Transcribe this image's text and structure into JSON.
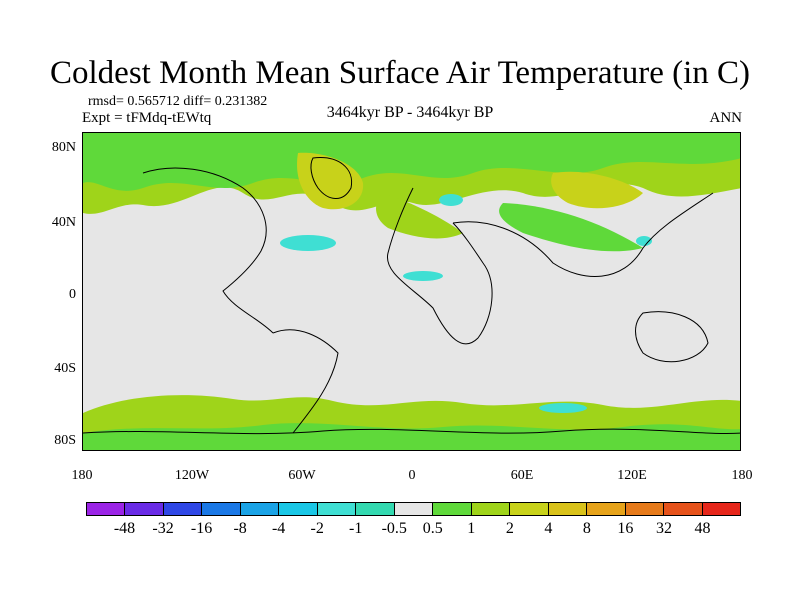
{
  "title": "Coldest Month Mean Surface Air Temperature (in C)",
  "stats": "rmsd= 0.565712 diff= 0.231382",
  "experiment": "Expt = tFMdq-tEWtq",
  "period": "3464kyr BP - 3464kyr BP",
  "season": "ANN",
  "map": {
    "y_tick_labels": [
      "80N",
      "40N",
      "0",
      "40S",
      "80S"
    ],
    "x_tick_labels": [
      "180",
      "120W",
      "60W",
      "0",
      "60E",
      "120E",
      "180"
    ],
    "background_color": "#e6e6e6"
  },
  "colorbar": {
    "colors": [
      "#9b24e6",
      "#6a2be6",
      "#2f47e6",
      "#1a78e6",
      "#1aa3e6",
      "#1ac7e6",
      "#3fdfd3",
      "#33d9b0",
      "#e6e6e6",
      "#5fd93a",
      "#9fd41a",
      "#c8d21a",
      "#d9c21a",
      "#e6a31a",
      "#e67a1a",
      "#e6521a",
      "#e6261a"
    ],
    "labels": [
      "-48",
      "-32",
      "-16",
      "-8",
      "-4",
      "-2",
      "-1",
      "-0.5",
      "0.5",
      "1",
      "2",
      "4",
      "8",
      "16",
      "32",
      "48"
    ]
  }
}
